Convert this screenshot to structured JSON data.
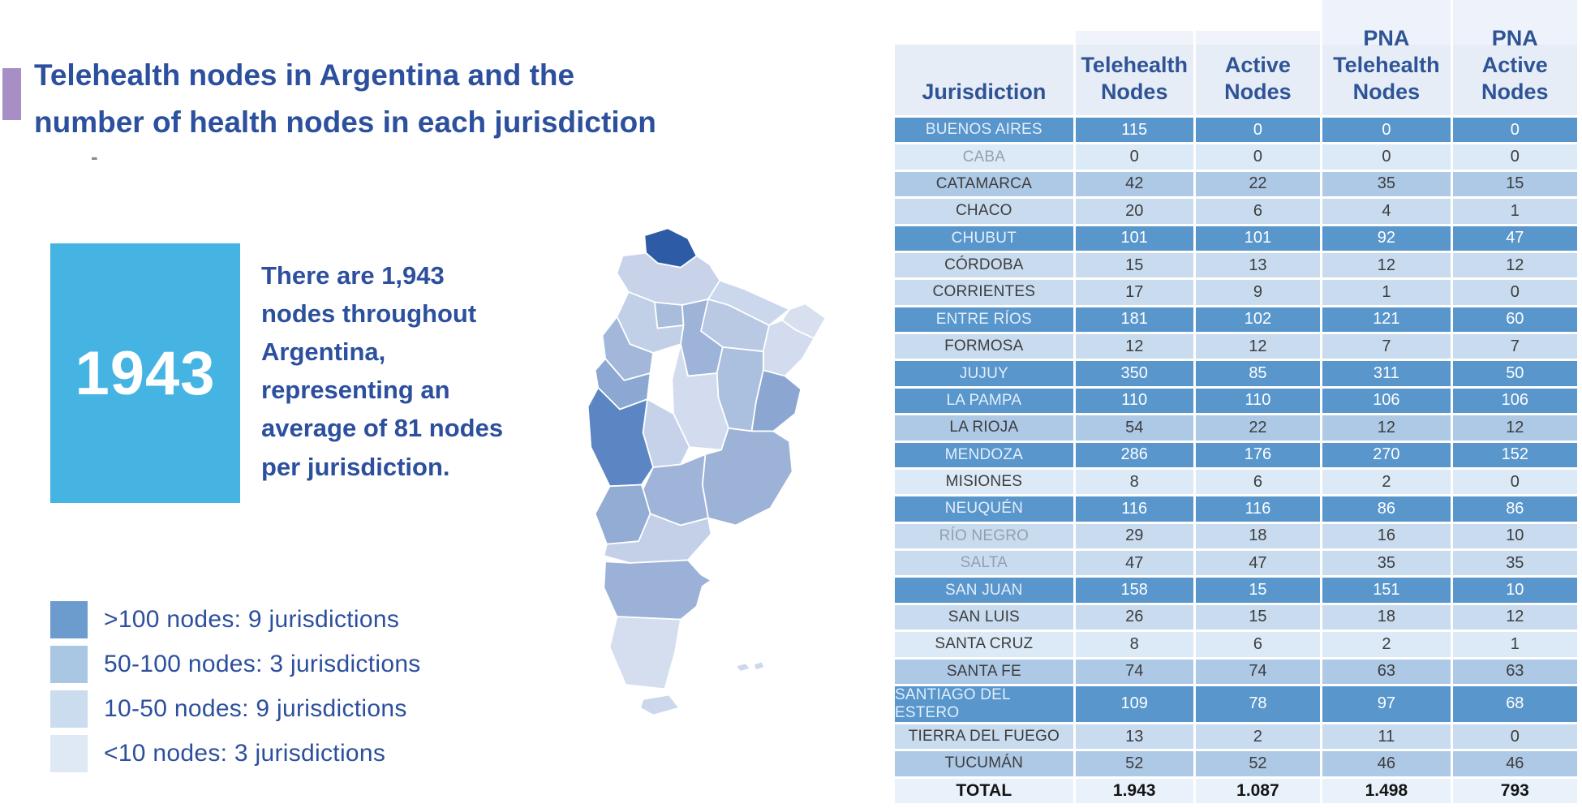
{
  "colors": {
    "accent_purple": "#a78fc6",
    "stat_cyan": "#45b4e3",
    "title_blue": "#2c4f9e",
    "header_blue": "#2f5496",
    "row_dark": "#5896cc",
    "row_medium": "#adc9e6",
    "row_light": "#c9dbef",
    "row_xlight": "#dce9f6",
    "row_total": "#e9f1fa"
  },
  "title": {
    "text": "Telehealth nodes in Argentina and the\nnumber of health nodes in each jurisdiction",
    "dash": "-"
  },
  "stat": {
    "value": "1943",
    "description": "There are 1,943\nnodes throughout\nArgentina,\nrepresenting an\naverage of 81 nodes\nper jurisdiction."
  },
  "legend": {
    "items": [
      {
        "label": ">100 nodes: 9 jurisdictions",
        "color": "#6b9ccd"
      },
      {
        "label": "50-100 nodes: 3 jurisdictions",
        "color": "#a9c6e3"
      },
      {
        "label": "10-50 nodes: 9 jurisdictions",
        "color": "#cbdcee"
      },
      {
        "label": "<10 nodes: 3 jurisdictions",
        "color": "#dfe9f5"
      }
    ]
  },
  "map": {
    "provinces": [
      {
        "id": "jujuy",
        "name": "Jujuy",
        "color": "#2d5ba6"
      },
      {
        "id": "salta",
        "name": "Salta",
        "color": "#c8d3e9"
      },
      {
        "id": "formosa",
        "name": "Formosa",
        "color": "#cbd7ec"
      },
      {
        "id": "chaco",
        "name": "Chaco",
        "color": "#b9c8e3"
      },
      {
        "id": "misiones",
        "name": "Misiones",
        "color": "#d8e0f0"
      },
      {
        "id": "corrientes",
        "name": "Corrientes",
        "color": "#d2dcee"
      },
      {
        "id": "tucuman",
        "name": "Tucumán",
        "color": "#a8bddc"
      },
      {
        "id": "catamarca",
        "name": "Catamarca",
        "color": "#c1cfe7"
      },
      {
        "id": "santiago_del_estero",
        "name": "Santiago del Estero",
        "color": "#9db3d8"
      },
      {
        "id": "santa_fe",
        "name": "Santa Fe",
        "color": "#abc0de"
      },
      {
        "id": "entre_rios",
        "name": "Entre Ríos",
        "color": "#8aa6d1"
      },
      {
        "id": "la_rioja",
        "name": "La Rioja",
        "color": "#a2b7da"
      },
      {
        "id": "cordoba",
        "name": "Córdoba",
        "color": "#d3dcef"
      },
      {
        "id": "san_juan",
        "name": "San Juan",
        "color": "#8ca8d2"
      },
      {
        "id": "san_luis",
        "name": "San Luis",
        "color": "#c6d2e9"
      },
      {
        "id": "mendoza",
        "name": "Mendoza",
        "color": "#5c85c3"
      },
      {
        "id": "buenos_aires",
        "name": "Buenos Aires",
        "color": "#9db2d7"
      },
      {
        "id": "la_pampa",
        "name": "La Pampa",
        "color": "#9fb4d8"
      },
      {
        "id": "neuquen",
        "name": "Neuquén",
        "color": "#92acd4"
      },
      {
        "id": "rio_negro",
        "name": "Río Negro",
        "color": "#c4d0e8"
      },
      {
        "id": "chubut",
        "name": "Chubut",
        "color": "#9bb1d7"
      },
      {
        "id": "santa_cruz",
        "name": "Santa Cruz",
        "color": "#d4deef"
      },
      {
        "id": "tierra_del_fuego",
        "name": "Tierra del Fuego",
        "color": "#ccd7ec"
      },
      {
        "id": "islas_1",
        "name": "Islas",
        "color": "#cdd8ec"
      },
      {
        "id": "islas_2",
        "name": "Islas",
        "color": "#cdd8ec"
      }
    ]
  },
  "table": {
    "columns": [
      "Jurisdiction",
      "Telehealth\nNodes",
      "Active\nNodes",
      "PNA\nTelehealth\nNodes",
      "PNA\nActive\nNodes"
    ],
    "rows": [
      {
        "name": "BUENOS AIRES",
        "values": [
          "115",
          "0",
          "0",
          "0"
        ],
        "tier": "dark"
      },
      {
        "name": "CABA",
        "values": [
          "0",
          "0",
          "0",
          "0"
        ],
        "tier": "xlight",
        "muted": true
      },
      {
        "name": "CATAMARCA",
        "values": [
          "42",
          "22",
          "35",
          "15"
        ],
        "tier": "medium"
      },
      {
        "name": "CHACO",
        "values": [
          "20",
          "6",
          "4",
          "1"
        ],
        "tier": "light"
      },
      {
        "name": "CHUBUT",
        "values": [
          "101",
          "101",
          "92",
          "47"
        ],
        "tier": "dark"
      },
      {
        "name": "CÓRDOBA",
        "values": [
          "15",
          "13",
          "12",
          "12"
        ],
        "tier": "light"
      },
      {
        "name": "CORRIENTES",
        "values": [
          "17",
          "9",
          "1",
          "0"
        ],
        "tier": "light"
      },
      {
        "name": "ENTRE RÍOS",
        "values": [
          "181",
          "102",
          "121",
          "60"
        ],
        "tier": "dark"
      },
      {
        "name": "FORMOSA",
        "values": [
          "12",
          "12",
          "7",
          "7"
        ],
        "tier": "light"
      },
      {
        "name": "JUJUY",
        "values": [
          "350",
          "85",
          "311",
          "50"
        ],
        "tier": "dark"
      },
      {
        "name": "LA PAMPA",
        "values": [
          "110",
          "110",
          "106",
          "106"
        ],
        "tier": "dark"
      },
      {
        "name": "LA RIOJA",
        "values": [
          "54",
          "22",
          "12",
          "12"
        ],
        "tier": "medium"
      },
      {
        "name": "MENDOZA",
        "values": [
          "286",
          "176",
          "270",
          "152"
        ],
        "tier": "dark"
      },
      {
        "name": "MISIONES",
        "values": [
          "8",
          "6",
          "2",
          "0"
        ],
        "tier": "xlight"
      },
      {
        "name": "NEUQUÉN",
        "values": [
          "116",
          "116",
          "86",
          "86"
        ],
        "tier": "dark"
      },
      {
        "name": "RÍO NEGRO",
        "values": [
          "29",
          "18",
          "16",
          "10"
        ],
        "tier": "light",
        "muted": true
      },
      {
        "name": "SALTA",
        "values": [
          "47",
          "47",
          "35",
          "35"
        ],
        "tier": "light",
        "muted": true
      },
      {
        "name": "SAN JUAN",
        "values": [
          "158",
          "15",
          "151",
          "10"
        ],
        "tier": "dark"
      },
      {
        "name": "SAN LUIS",
        "values": [
          "26",
          "15",
          "18",
          "12"
        ],
        "tier": "light"
      },
      {
        "name": "SANTA CRUZ",
        "values": [
          "8",
          "6",
          "2",
          "1"
        ],
        "tier": "xlight"
      },
      {
        "name": "SANTA FE",
        "values": [
          "74",
          "74",
          "63",
          "63"
        ],
        "tier": "medium"
      },
      {
        "name": "SANTIAGO DEL ESTERO",
        "values": [
          "109",
          "78",
          "97",
          "68"
        ],
        "tier": "dark"
      },
      {
        "name": "TIERRA DEL FUEGO",
        "values": [
          "13",
          "2",
          "11",
          "0"
        ],
        "tier": "light"
      },
      {
        "name": "TUCUMÁN",
        "values": [
          "52",
          "52",
          "46",
          "46"
        ],
        "tier": "medium"
      },
      {
        "name": "TOTAL",
        "values": [
          "1.943",
          "1.087",
          "1.498",
          "793"
        ],
        "tier": "total"
      }
    ]
  }
}
